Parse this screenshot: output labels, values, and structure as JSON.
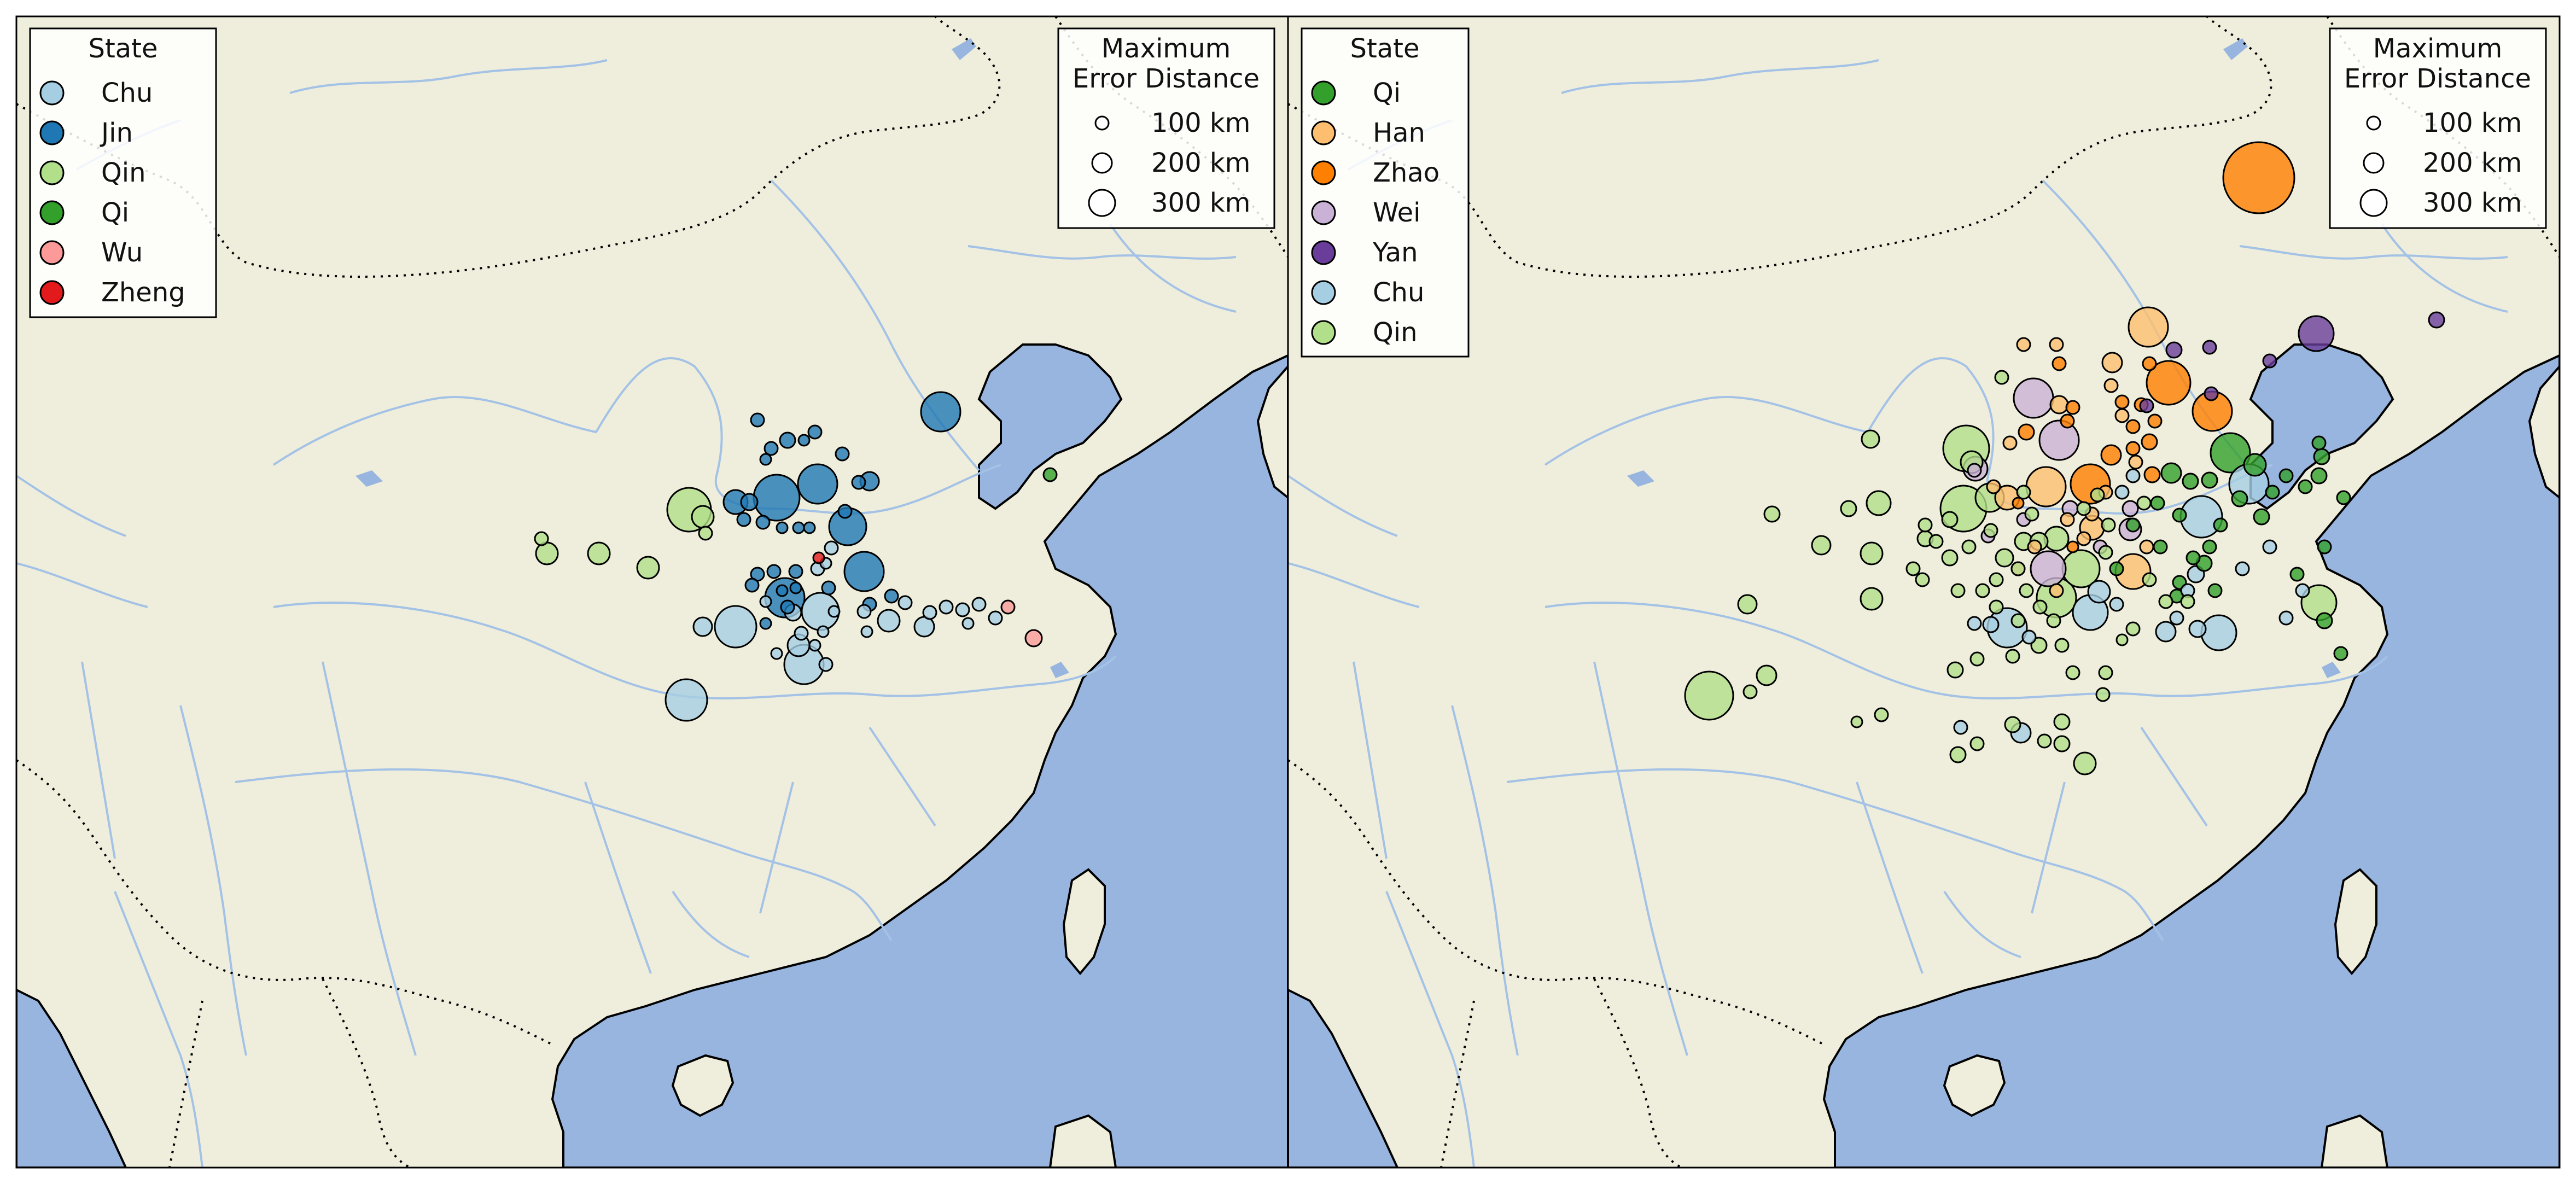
{
  "panels": [
    {
      "id": "left",
      "state_legend": {
        "title": "State",
        "entries": [
          {
            "label": "Chu",
            "color": "#a6cee3"
          },
          {
            "label": "Jin",
            "color": "#1f78b4"
          },
          {
            "label": "Qin",
            "color": "#b2df8a"
          },
          {
            "label": "Qi",
            "color": "#33a02c"
          },
          {
            "label": "Wu",
            "color": "#fb9a99"
          },
          {
            "label": "Zheng",
            "color": "#e31a1c"
          }
        ]
      },
      "size_legend": {
        "title_line1": "Maximum",
        "title_line2": "Error Distance",
        "entries": [
          {
            "label": "100 km",
            "km": 100
          },
          {
            "label": "200 km",
            "km": 200
          },
          {
            "label": "300 km",
            "km": 300
          }
        ]
      }
    },
    {
      "id": "right",
      "state_legend": {
        "title": "State",
        "entries": [
          {
            "label": "Qi",
            "color": "#33a02c"
          },
          {
            "label": "Han",
            "color": "#fdbf6f"
          },
          {
            "label": "Zhao",
            "color": "#ff7f00"
          },
          {
            "label": "Wei",
            "color": "#cab2d6"
          },
          {
            "label": "Yan",
            "color": "#6a3d9a"
          },
          {
            "label": "Chu",
            "color": "#a6cee3"
          },
          {
            "label": "Qin",
            "color": "#b2df8a"
          }
        ]
      },
      "size_legend": {
        "title_line1": "Maximum",
        "title_line2": "Error Distance",
        "entries": [
          {
            "label": "100 km",
            "km": 100
          },
          {
            "label": "200 km",
            "km": 200
          },
          {
            "label": "300 km",
            "km": 300
          }
        ]
      }
    }
  ],
  "colors": {
    "land": "#efeedc",
    "sea": "#98b5e0",
    "river": "#a4c2e6",
    "coast": "#000000",
    "border": "#000000"
  }
}
